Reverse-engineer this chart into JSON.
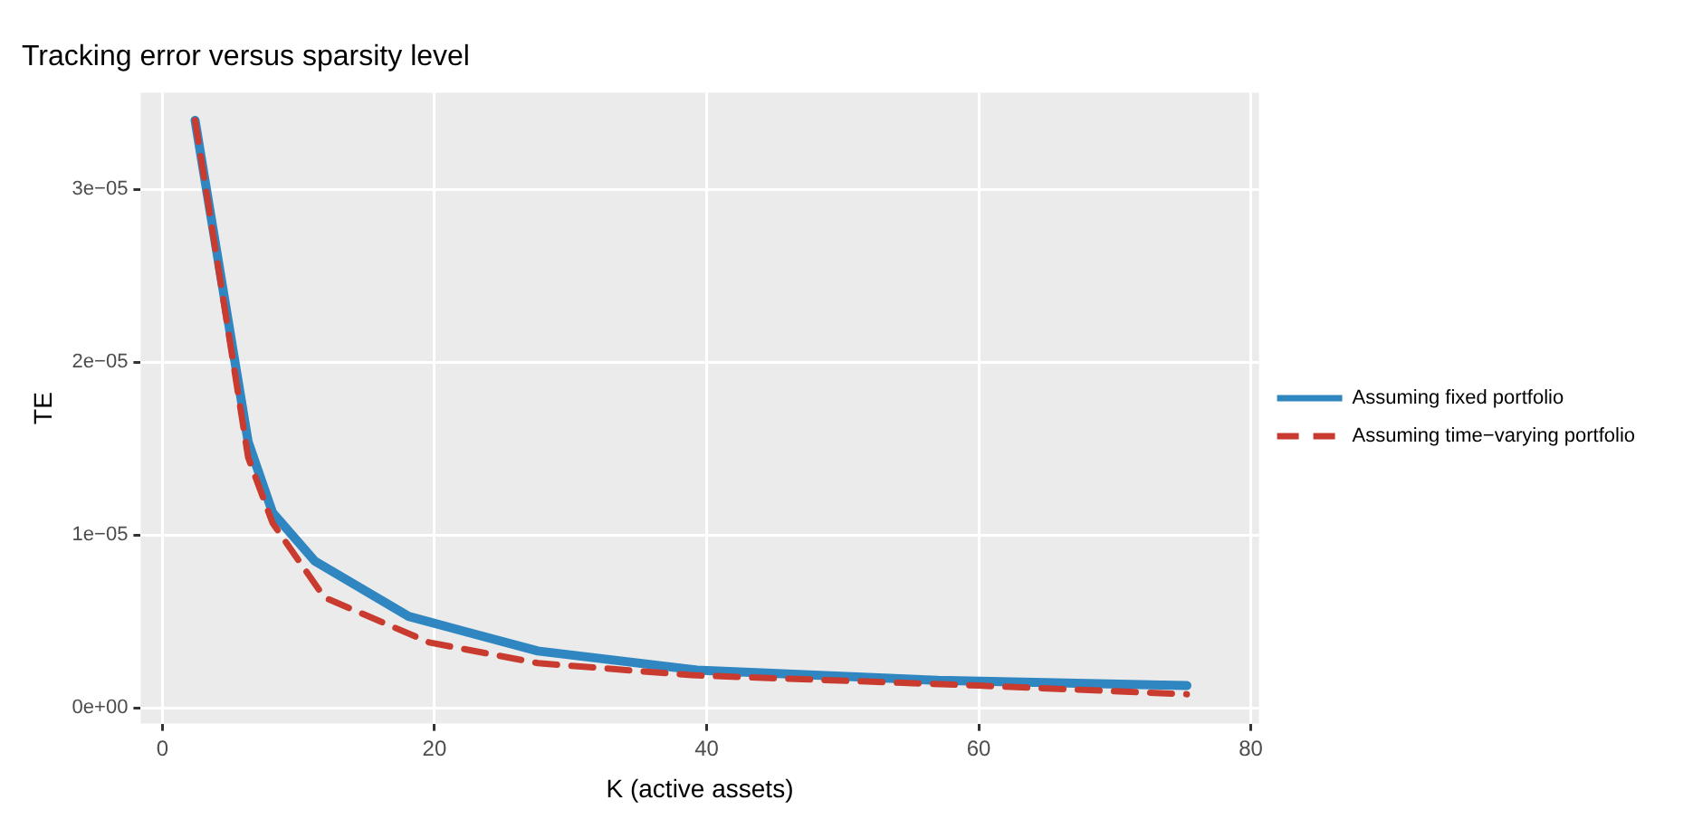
{
  "chart_data": {
    "type": "line",
    "title": "Tracking error versus sparsity level",
    "xlabel": "K (active assets)",
    "ylabel": "TE",
    "xlim": [
      -1.6,
      80.6
    ],
    "xticks": [
      0,
      20,
      40,
      60,
      80
    ],
    "ylim": [
      -9e-07,
      3.56e-05
    ],
    "yticks": [
      {
        "value": 0,
        "label": "0e+00"
      },
      {
        "value": 1e-05,
        "label": "1e−05"
      },
      {
        "value": 2e-05,
        "label": "2e−05"
      },
      {
        "value": 3e-05,
        "label": "3e−05"
      }
    ],
    "grid": true,
    "legend": "right",
    "series": [
      {
        "name": "Assuming fixed portfolio",
        "color": "#2f86c1",
        "line_style": "solid",
        "x": [
          2.4,
          6.3,
          8.1,
          11.2,
          18.1,
          27.6,
          39.3,
          57,
          75.3
        ],
        "values": [
          3.4e-05,
          1.54e-05,
          1.13e-05,
          8.5e-06,
          5.3e-06,
          3.3e-06,
          2.2e-06,
          1.6e-06,
          1.3e-06
        ]
      },
      {
        "name": "Assuming time−varying portfolio",
        "color": "#c93b2f",
        "line_style": "dashed",
        "x": [
          2.4,
          6.3,
          8.1,
          11.9,
          19.6,
          27.6,
          38.9,
          60,
          75.3
        ],
        "values": [
          3.4e-05,
          1.45e-05,
          1.07e-05,
          6.4e-06,
          3.8e-06,
          2.6e-06,
          1.9e-06,
          1.3e-06,
          8e-07
        ]
      }
    ]
  }
}
